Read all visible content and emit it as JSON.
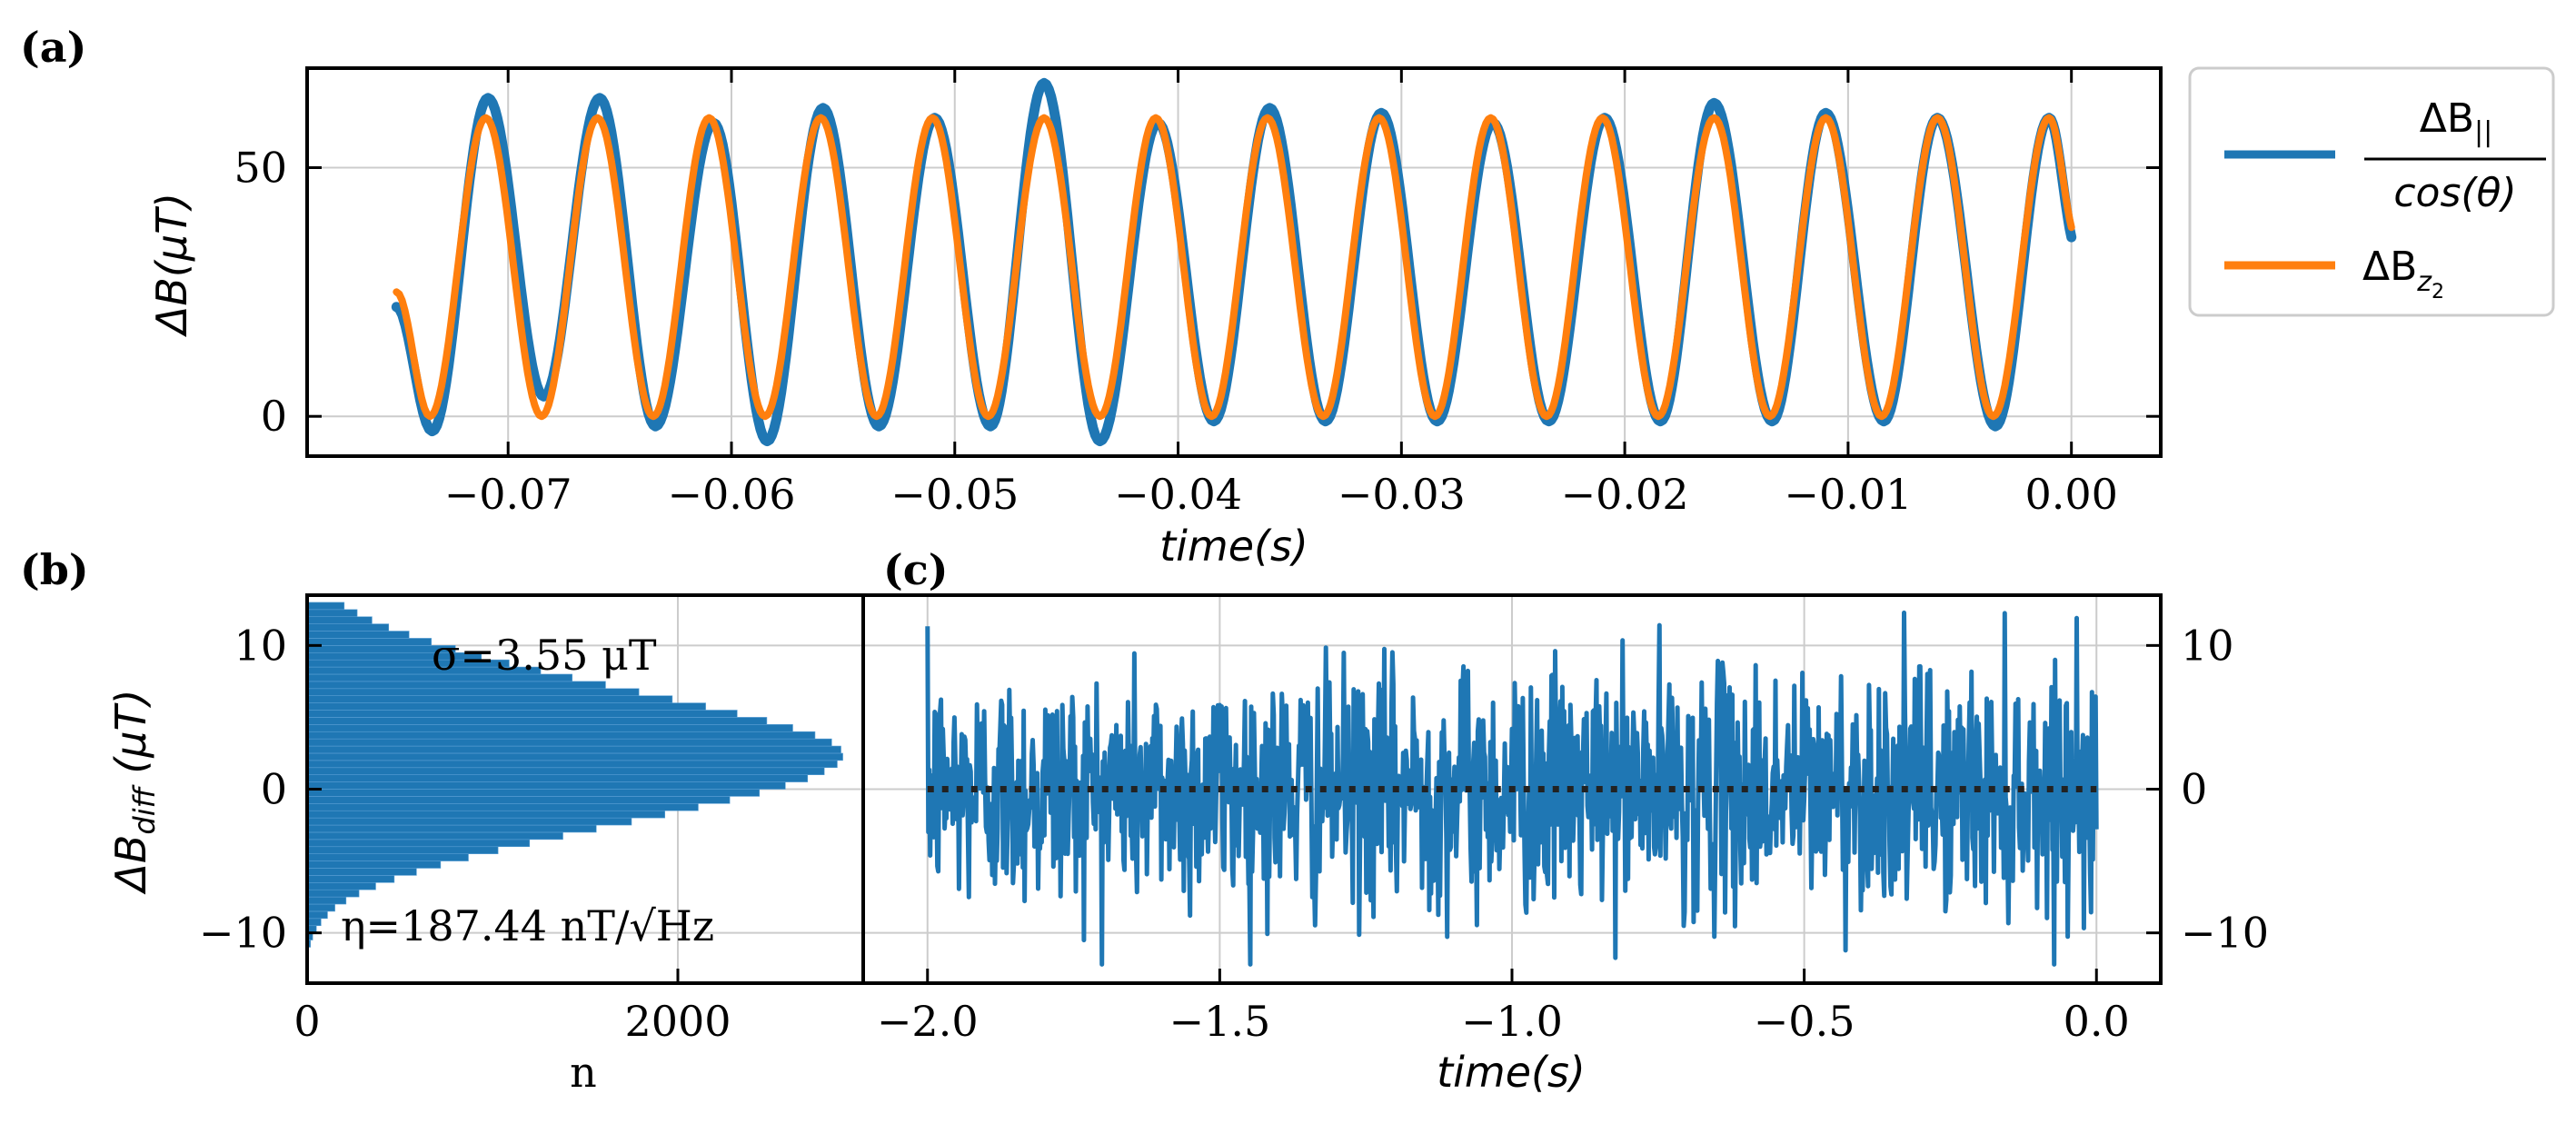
{
  "chart_data": [
    {
      "panel": "(a)",
      "type": "line",
      "xlabel": "time(s)",
      "ylabel": "ΔB(μT)",
      "xlim": [
        -0.079,
        0.004
      ],
      "ylim": [
        -8,
        70
      ],
      "xticks": [
        -0.07,
        -0.06,
        -0.05,
        -0.04,
        -0.03,
        -0.02,
        -0.01,
        0.0
      ],
      "xtick_labels": [
        "−0.07",
        "−0.06",
        "−0.05",
        "−0.04",
        "−0.03",
        "−0.02",
        "−0.01",
        "0.00"
      ],
      "yticks": [
        0,
        50
      ],
      "ytick_labels": [
        "0",
        "50"
      ],
      "grid": true,
      "legend_position": "outside-right",
      "signal": {
        "frequency_hz": 100,
        "x_start": -0.075,
        "x_end": 0.0,
        "mean": 30,
        "amplitude": 30
      },
      "series": [
        {
          "name": "ΔB|| / cos(θ)",
          "color": "#1f77b4",
          "peaks": [
            [
              -0.0709,
              64
            ],
            [
              -0.0659,
              64
            ],
            [
              -0.0608,
              59
            ],
            [
              -0.0559,
              62
            ],
            [
              -0.0509,
              60
            ],
            [
              -0.046,
              67
            ],
            [
              -0.0409,
              59
            ],
            [
              -0.0359,
              62
            ],
            [
              -0.0309,
              61
            ],
            [
              -0.0259,
              59
            ],
            [
              -0.0209,
              60
            ],
            [
              -0.016,
              63
            ],
            [
              -0.011,
              61
            ],
            [
              -0.006,
              60
            ],
            [
              -0.001,
              60
            ]
          ],
          "troughs": [
            [
              -0.0734,
              -3
            ],
            [
              -0.0684,
              4
            ],
            [
              -0.0634,
              -2
            ],
            [
              -0.0584,
              -5
            ],
            [
              -0.0534,
              -2
            ],
            [
              -0.0484,
              -2
            ],
            [
              -0.0435,
              -5
            ],
            [
              -0.0384,
              -1
            ],
            [
              -0.0334,
              -1
            ],
            [
              -0.0284,
              -1
            ],
            [
              -0.0234,
              -1
            ],
            [
              -0.0184,
              -1
            ],
            [
              -0.0134,
              -1
            ],
            [
              -0.0084,
              -1
            ],
            [
              -0.0034,
              -2
            ]
          ]
        },
        {
          "name": "ΔBz2",
          "color": "#ff7f0e",
          "peaks": [
            [
              -0.071,
              60
            ],
            [
              -0.066,
              60
            ],
            [
              -0.061,
              60
            ],
            [
              -0.056,
              60
            ],
            [
              -0.051,
              60
            ],
            [
              -0.046,
              60
            ],
            [
              -0.041,
              60
            ],
            [
              -0.036,
              60
            ],
            [
              -0.031,
              60
            ],
            [
              -0.026,
              60
            ],
            [
              -0.021,
              60
            ],
            [
              -0.016,
              60
            ],
            [
              -0.011,
              60
            ],
            [
              -0.006,
              60
            ],
            [
              -0.001,
              60
            ]
          ],
          "troughs": [
            [
              -0.0735,
              0
            ],
            [
              -0.0685,
              0
            ],
            [
              -0.0635,
              0
            ],
            [
              -0.0585,
              0
            ],
            [
              -0.0535,
              0
            ],
            [
              -0.0485,
              0
            ],
            [
              -0.0435,
              0
            ],
            [
              -0.0385,
              0
            ],
            [
              -0.0335,
              0
            ],
            [
              -0.0285,
              0
            ],
            [
              -0.0235,
              0
            ],
            [
              -0.0185,
              0
            ],
            [
              -0.0135,
              0
            ],
            [
              -0.0085,
              0
            ],
            [
              -0.0035,
              0
            ]
          ]
        }
      ]
    },
    {
      "panel": "(b)",
      "type": "bar",
      "orientation": "horizontal",
      "xlabel": "n",
      "ylabel": "ΔBdiff (μT)",
      "xlim": [
        0,
        3000
      ],
      "ylim": [
        -13.5,
        13.5
      ],
      "xticks": [
        0,
        2000
      ],
      "xtick_labels": [
        "0",
        "2000"
      ],
      "yticks": [
        -10,
        0,
        10
      ],
      "ytick_labels": [
        "−10",
        "0",
        "10"
      ],
      "grid": true,
      "color": "#1f77b4",
      "bins": {
        "start": -12.0,
        "width": 0.5
      },
      "values": [
        5,
        8,
        18,
        30,
        50,
        75,
        110,
        150,
        210,
        280,
        370,
        470,
        590,
        720,
        870,
        1030,
        1200,
        1380,
        1560,
        1750,
        1930,
        2110,
        2280,
        2440,
        2580,
        2700,
        2790,
        2860,
        2890,
        2880,
        2830,
        2740,
        2620,
        2480,
        2320,
        2150,
        1970,
        1790,
        1610,
        1430,
        1260,
        1090,
        940,
        800,
        670,
        550,
        440,
        350,
        270,
        200
      ],
      "annotations": [
        "σ=3.55 μT",
        "η=187.44 nT/√Hz"
      ]
    },
    {
      "panel": "(c)",
      "type": "line",
      "xlabel": "time(s)",
      "xlim": [
        -2.11,
        0.11
      ],
      "ylim": [
        -13.5,
        13.5
      ],
      "xticks": [
        -2.0,
        -1.5,
        -1.0,
        -0.5,
        0.0
      ],
      "xtick_labels": [
        "−2.0",
        "−1.5",
        "−1.0",
        "−0.5",
        "0.0"
      ],
      "yticks": [
        -10,
        0,
        10
      ],
      "ytick_labels": [
        "−10",
        "0",
        "10"
      ],
      "grid": true,
      "color": "#1f77b4",
      "signal": {
        "x_start": -2.0,
        "x_end": 0.0,
        "mean": 0,
        "sigma_uT": 3.55,
        "max": 12.5,
        "min": -12.2
      },
      "reference_line": {
        "y": 0,
        "style": "dotted",
        "color": "#222222"
      }
    }
  ],
  "labels": {
    "panel_a": "(a)",
    "panel_b": "(b)",
    "panel_c": "(c)"
  }
}
